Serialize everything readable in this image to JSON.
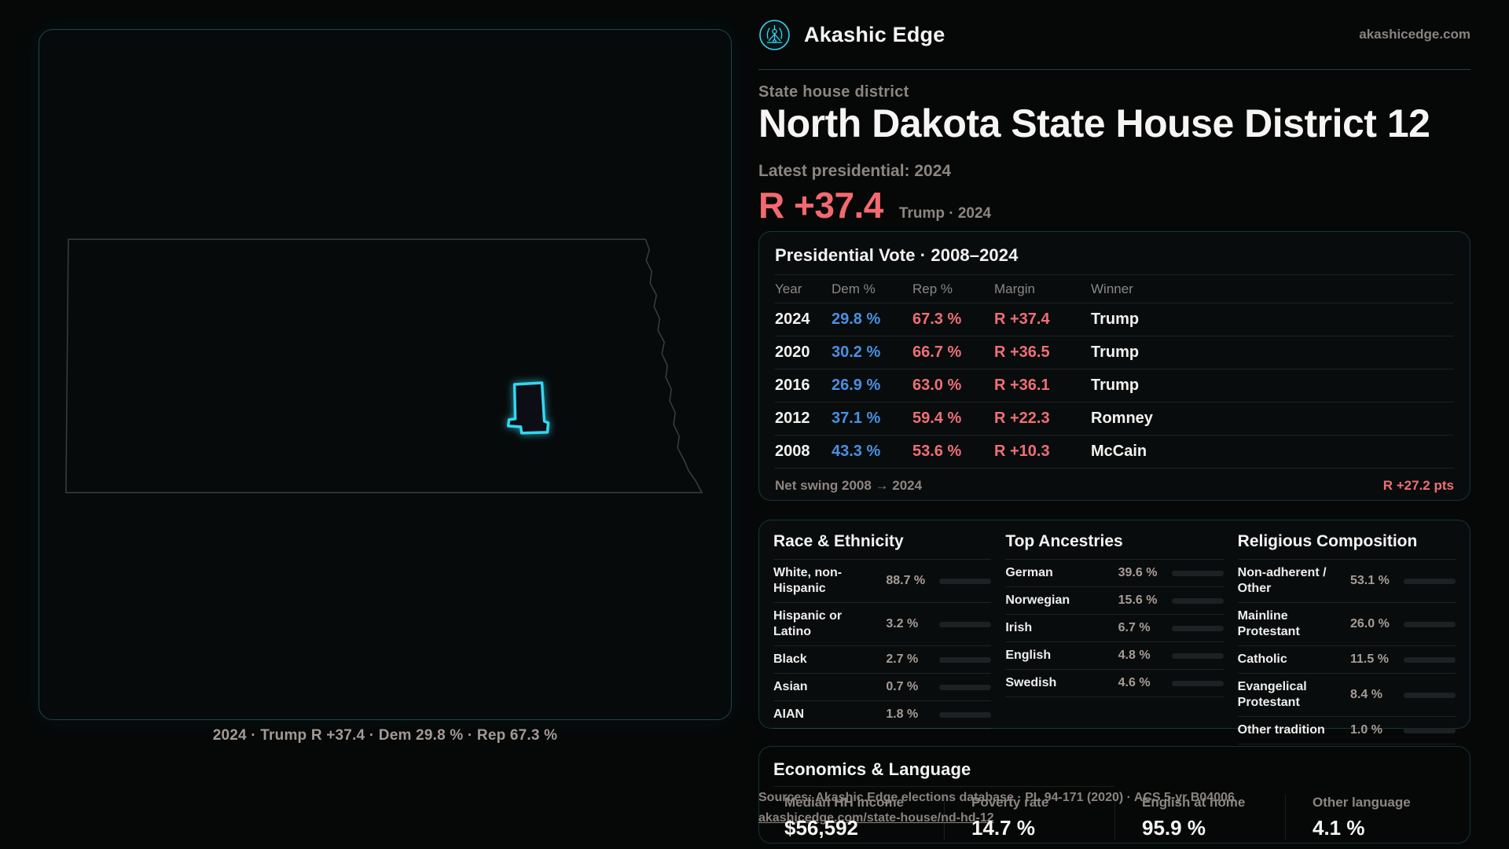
{
  "brand": {
    "name": "Akashic Edge",
    "domain": "akashicedge.com",
    "logo_icon": "akashic-edge-emblem",
    "accent_color": "#35d6f0"
  },
  "hero": {
    "eyebrow": "State house district",
    "title": "North Dakota State House District 12",
    "latest_label": "Latest presidential: 2024",
    "margin_value": "R +37.4",
    "margin_context": "Trump · 2024",
    "margin_color": "#f4696f"
  },
  "map": {
    "state": "North Dakota",
    "highlight_color": "#35d6f0",
    "caption": "2024 · Trump R +37.4 · Dem 29.8 % · Rep 67.3 %"
  },
  "vote_card": {
    "title": "Presidential Vote · 2008–2024",
    "columns": [
      "Year",
      "Dem %",
      "Rep %",
      "Margin",
      "Winner"
    ],
    "rows": [
      {
        "year": "2024",
        "dem": "29.8 %",
        "rep": "67.3 %",
        "margin": "R +37.4",
        "winner": "Trump"
      },
      {
        "year": "2020",
        "dem": "30.2 %",
        "rep": "66.7 %",
        "margin": "R +36.5",
        "winner": "Trump"
      },
      {
        "year": "2016",
        "dem": "26.9 %",
        "rep": "63.0 %",
        "margin": "R +36.1",
        "winner": "Trump"
      },
      {
        "year": "2012",
        "dem": "37.1 %",
        "rep": "59.4 %",
        "margin": "R +22.3",
        "winner": "Romney"
      },
      {
        "year": "2008",
        "dem": "43.3 %",
        "rep": "53.6 %",
        "margin": "R +10.3",
        "winner": "McCain"
      }
    ],
    "dem_color": "#4a90e2",
    "rep_color": "#ee6f75",
    "net_swing_label": "Net swing 2008 → 2024",
    "net_swing_value": "R +27.2 pts"
  },
  "demographics": {
    "race": {
      "title": "Race & Ethnicity",
      "rows": [
        {
          "label": "White, non-Hispanic",
          "value": "88.7 %",
          "pct": 88.7,
          "color": "#9db0c9"
        },
        {
          "label": "Hispanic or Latino",
          "value": "3.2 %",
          "pct": 3.2,
          "color": "#eda23f"
        },
        {
          "label": "Black",
          "value": "2.7 %",
          "pct": 2.7,
          "color": "#8f7df2"
        },
        {
          "label": "Asian",
          "value": "0.7 %",
          "pct": 0.7,
          "color": "#3fd0a4"
        },
        {
          "label": "AIAN",
          "value": "1.8 %",
          "pct": 1.8,
          "color": "#ef8b3c"
        }
      ]
    },
    "ancestries": {
      "title": "Top Ancestries",
      "rows": [
        {
          "label": "German",
          "value": "39.6 %",
          "pct": 39.6,
          "color": "#93a9c6"
        },
        {
          "label": "Norwegian",
          "value": "15.6 %",
          "pct": 15.6,
          "color": "#93a9c6"
        },
        {
          "label": "Irish",
          "value": "6.7 %",
          "pct": 6.7,
          "color": "#93a9c6"
        },
        {
          "label": "English",
          "value": "4.8 %",
          "pct": 4.8,
          "color": "#93a9c6"
        },
        {
          "label": "Swedish",
          "value": "4.6 %",
          "pct": 4.6,
          "color": "#93a9c6"
        }
      ]
    },
    "religion": {
      "title": "Religious Composition",
      "rows": [
        {
          "label": "Non-adherent / Other",
          "value": "53.1 %",
          "pct": 53.1,
          "color": "#8a95a8"
        },
        {
          "label": "Mainline Protestant",
          "value": "26.0 %",
          "pct": 26.0,
          "color": "#5b93e4"
        },
        {
          "label": "Catholic",
          "value": "11.5 %",
          "pct": 11.5,
          "color": "#edc83f"
        },
        {
          "label": "Evangelical Protestant",
          "value": "8.4 %",
          "pct": 8.4,
          "color": "#ea7070"
        },
        {
          "label": "Other tradition",
          "value": "1.0 %",
          "pct": 1.0,
          "color": "#dfe3e8"
        }
      ]
    }
  },
  "economics": {
    "title": "Economics & Language",
    "stats": [
      {
        "label": "Median HH income",
        "value": "$56,592"
      },
      {
        "label": "Poverty rate",
        "value": "14.7 %"
      },
      {
        "label": "English at home",
        "value": "95.9 %"
      },
      {
        "label": "Other language",
        "value": "4.1 %"
      }
    ]
  },
  "footer": {
    "line1": "Sources: Akashic Edge elections database · PL 94-171 (2020) · ACS 5-yr B04006",
    "line2": "akashicedge.com/state-house/nd-hd-12"
  }
}
